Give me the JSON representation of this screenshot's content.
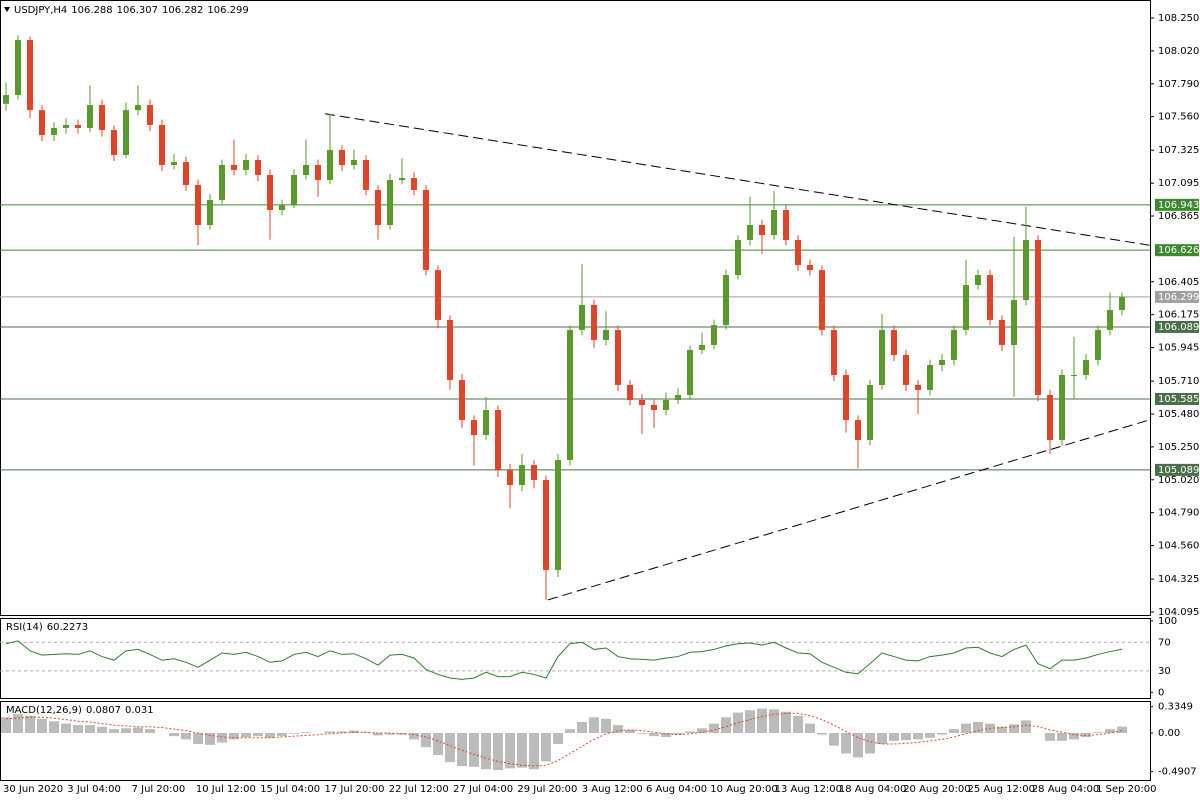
{
  "chart_data": {
    "type": "candlestick",
    "symbol": "USDJPY,H4",
    "ohlc": [
      106.288,
      106.307,
      106.282,
      106.299
    ],
    "up_color": "#5a9a2c",
    "down_color": "#e0452a",
    "ylim": [
      104.074,
      108.376
    ],
    "yticks": [
      {
        "value": 108.25,
        "label": "108.250"
      },
      {
        "value": 108.02,
        "label": "108.020"
      },
      {
        "value": 107.79,
        "label": "107.790"
      },
      {
        "value": 107.56,
        "label": "107.560"
      },
      107.325,
      107.095,
      106.865,
      106.405,
      106.175,
      105.945,
      {
        "value": 105.71,
        "label": "105.710"
      },
      {
        "value": 105.48,
        "label": "105.480"
      },
      {
        "value": 105.25,
        "label": "105.250"
      },
      {
        "value": 105.02,
        "label": "105.020"
      },
      {
        "value": 104.79,
        "label": "104.790"
      },
      {
        "value": 104.56,
        "label": "104.560"
      },
      104.325,
      104.095
    ],
    "xlabels": [
      "30 Jun 2020",
      "3 Jul 04:00",
      "7 Jul 20:00",
      "10 Jul 12:00",
      "15 Jul 04:00",
      "17 Jul 20:00",
      "22 Jul 12:00",
      "27 Jul 04:00",
      "29 Jul 20:00",
      "3 Aug 12:00",
      "6 Aug 04:00",
      "10 Aug 20:00",
      "13 Aug 12:00",
      "18 Aug 04:00",
      "20 Aug 20:00",
      "25 Aug 12:00",
      "28 Aug 04:00",
      "1 Sep 20:00"
    ],
    "levels": [
      {
        "value": 106.943,
        "color": "#3d8a2e"
      },
      {
        "value": 106.626,
        "color": "#3d8a2e"
      },
      {
        "value": 106.299,
        "color": "#a0a0a0"
      },
      {
        "value": 106.089,
        "color": "#4a6f4a"
      },
      {
        "value": 105.585,
        "color": "#4a6f4a"
      },
      {
        "value": 105.089,
        "color": "#4a6f4a"
      }
    ],
    "trendlines": [
      {
        "start": 107.58,
        "end": 106.66
      },
      {
        "start": 104.18,
        "end": 105.44
      }
    ],
    "candles": [
      [
        107.65,
        107.8,
        107.6,
        107.711
      ],
      [
        107.711,
        108.13,
        107.68,
        108.096
      ],
      [
        108.096,
        108.12,
        107.55,
        107.606
      ],
      [
        107.606,
        107.64,
        107.39,
        107.432
      ],
      [
        107.432,
        107.52,
        107.39,
        107.481
      ],
      [
        107.481,
        107.55,
        107.44,
        107.502
      ],
      [
        107.502,
        107.54,
        107.44,
        107.481
      ],
      [
        107.481,
        107.78,
        107.45,
        107.641
      ],
      [
        107.641,
        107.68,
        107.42,
        107.467
      ],
      [
        107.467,
        107.5,
        107.25,
        107.292
      ],
      [
        107.292,
        107.66,
        107.27,
        107.606
      ],
      [
        107.606,
        107.78,
        107.57,
        107.641
      ],
      [
        107.641,
        107.68,
        107.46,
        107.502
      ],
      [
        107.502,
        107.54,
        107.18,
        107.222
      ],
      [
        107.222,
        107.3,
        107.19,
        107.243
      ],
      [
        107.243,
        107.28,
        107.04,
        107.082
      ],
      [
        107.082,
        107.12,
        106.66,
        106.802
      ],
      [
        106.802,
        107.02,
        106.77,
        106.977
      ],
      [
        106.977,
        107.26,
        106.95,
        107.222
      ],
      [
        107.222,
        107.4,
        107.15,
        107.187
      ],
      [
        107.187,
        107.3,
        107.15,
        107.257
      ],
      [
        107.257,
        107.29,
        107.11,
        107.152
      ],
      [
        107.152,
        107.19,
        106.7,
        106.907
      ],
      [
        106.907,
        106.98,
        106.87,
        106.942
      ],
      [
        106.942,
        107.19,
        106.92,
        107.152
      ],
      [
        107.152,
        107.4,
        107.12,
        107.222
      ],
      [
        107.222,
        107.26,
        107.0,
        107.117
      ],
      [
        107.117,
        107.58,
        107.09,
        107.327
      ],
      [
        107.327,
        107.36,
        107.18,
        107.222
      ],
      [
        107.222,
        107.33,
        107.19,
        107.257
      ],
      [
        107.257,
        107.29,
        107.01,
        107.047
      ],
      [
        107.047,
        107.08,
        106.7,
        106.802
      ],
      [
        106.802,
        107.16,
        106.77,
        107.117
      ],
      [
        107.117,
        107.27,
        107.09,
        107.131
      ],
      [
        107.131,
        107.17,
        107.01,
        107.047
      ],
      [
        107.047,
        107.08,
        106.45,
        106.487
      ],
      [
        106.487,
        106.52,
        106.08,
        106.138
      ],
      [
        106.138,
        106.17,
        105.65,
        105.718
      ],
      [
        105.718,
        105.76,
        105.38,
        105.438
      ],
      [
        105.438,
        105.47,
        105.12,
        105.333
      ],
      [
        105.333,
        105.6,
        105.3,
        105.508
      ],
      [
        105.508,
        105.54,
        105.04,
        105.088
      ],
      [
        105.088,
        105.13,
        104.82,
        104.983
      ],
      [
        104.983,
        105.2,
        104.94,
        105.123
      ],
      [
        105.123,
        105.16,
        104.96,
        105.018
      ],
      [
        105.018,
        105.05,
        104.18,
        104.389
      ],
      [
        104.389,
        105.2,
        104.34,
        105.158
      ],
      [
        105.158,
        106.1,
        105.12,
        106.068
      ],
      [
        106.068,
        106.53,
        106.03,
        106.243
      ],
      [
        106.243,
        106.28,
        105.94,
        105.998
      ],
      [
        105.998,
        106.2,
        105.96,
        106.068
      ],
      [
        106.068,
        106.1,
        105.64,
        105.683
      ],
      [
        105.683,
        105.72,
        105.54,
        105.578
      ],
      [
        105.578,
        105.62,
        105.34,
        105.543
      ],
      [
        105.543,
        105.58,
        105.38,
        105.508
      ],
      [
        105.508,
        105.63,
        105.47,
        105.578
      ],
      [
        105.578,
        105.66,
        105.55,
        105.613
      ],
      [
        105.613,
        105.96,
        105.58,
        105.928
      ],
      [
        105.928,
        106.05,
        105.9,
        105.963
      ],
      [
        105.963,
        106.14,
        105.93,
        106.102
      ],
      [
        106.102,
        106.49,
        106.07,
        106.452
      ],
      [
        106.452,
        106.73,
        106.42,
        106.697
      ],
      [
        106.697,
        107.0,
        106.66,
        106.802
      ],
      [
        106.802,
        106.84,
        106.6,
        106.732
      ],
      [
        106.732,
        107.04,
        106.7,
        106.907
      ],
      [
        106.907,
        106.94,
        106.66,
        106.697
      ],
      [
        106.697,
        106.73,
        106.48,
        106.522
      ],
      [
        106.522,
        106.56,
        106.45,
        106.487
      ],
      [
        106.487,
        106.52,
        106.03,
        106.068
      ],
      [
        106.068,
        106.1,
        105.71,
        105.753
      ],
      [
        105.753,
        105.79,
        105.35,
        105.438
      ],
      [
        105.438,
        105.47,
        105.1,
        105.298
      ],
      [
        105.298,
        105.72,
        105.26,
        105.683
      ],
      [
        105.683,
        106.18,
        105.65,
        106.068
      ],
      [
        106.068,
        106.1,
        105.85,
        105.893
      ],
      [
        105.893,
        105.93,
        105.64,
        105.683
      ],
      [
        105.683,
        105.72,
        105.48,
        105.648
      ],
      [
        105.648,
        105.86,
        105.61,
        105.823
      ],
      [
        105.823,
        105.9,
        105.78,
        105.858
      ],
      [
        105.858,
        106.1,
        105.82,
        106.068
      ],
      [
        106.068,
        106.56,
        106.03,
        106.382
      ],
      [
        106.382,
        106.49,
        106.35,
        106.452
      ],
      [
        106.452,
        106.49,
        106.1,
        106.138
      ],
      [
        106.138,
        106.17,
        105.92,
        105.963
      ],
      [
        105.963,
        106.72,
        105.6,
        106.277
      ],
      [
        106.277,
        106.93,
        106.24,
        106.697
      ],
      [
        106.697,
        106.73,
        105.57,
        105.613
      ],
      [
        105.613,
        105.65,
        105.2,
        105.298
      ],
      [
        105.298,
        105.79,
        105.26,
        105.753
      ],
      [
        105.753,
        106.02,
        105.59,
        105.753
      ],
      [
        105.753,
        105.9,
        105.72,
        105.858
      ],
      [
        105.858,
        106.1,
        105.82,
        106.068
      ],
      [
        106.068,
        106.33,
        106.03,
        106.208
      ],
      [
        106.208,
        106.33,
        106.17,
        106.299
      ]
    ],
    "rsi": {
      "name": "RSI(14)",
      "color": "#2f7d2f",
      "ylim": [
        -8,
        104
      ],
      "yticks": [
        0,
        30,
        70,
        100
      ],
      "values": [
        68,
        72,
        58,
        52,
        53,
        54,
        53,
        58,
        50,
        45,
        58,
        60,
        53,
        45,
        47,
        42,
        35,
        45,
        55,
        53,
        56,
        50,
        42,
        44,
        53,
        56,
        50,
        58,
        53,
        54,
        47,
        38,
        52,
        53,
        48,
        32,
        25,
        20,
        18,
        20,
        28,
        22,
        22,
        28,
        25,
        20,
        50,
        68,
        70,
        60,
        62,
        50,
        47,
        46,
        45,
        48,
        50,
        56,
        57,
        60,
        65,
        68,
        69,
        66,
        70,
        62,
        55,
        54,
        42,
        35,
        28,
        26,
        40,
        55,
        50,
        45,
        44,
        50,
        52,
        55,
        62,
        63,
        55,
        50,
        60,
        66,
        40,
        33,
        45,
        45,
        48,
        53,
        57,
        60.2273
      ]
    },
    "macd": {
      "name": "MACD(12,26,9)",
      "color": "#777777",
      "signal_color": "#e0452a",
      "ylim": [
        -0.597,
        0.407
      ],
      "yticks": [
        0.3349,
        {
          "value": 0,
          "label": "0.00"
        },
        -0.4907
      ],
      "values": [
        0.2,
        0.24,
        0.22,
        0.18,
        0.15,
        0.12,
        0.1,
        0.1,
        0.08,
        0.05,
        0.06,
        0.07,
        0.05,
        0.0,
        -0.04,
        -0.08,
        -0.14,
        -0.15,
        -0.12,
        -0.08,
        -0.05,
        -0.04,
        -0.06,
        -0.04,
        -0.01,
        0.01,
        0.0,
        0.02,
        0.02,
        0.03,
        0.01,
        -0.03,
        -0.02,
        -0.02,
        -0.08,
        -0.18,
        -0.28,
        -0.37,
        -0.42,
        -0.43,
        -0.46,
        -0.47,
        -0.45,
        -0.44,
        -0.46,
        -0.36,
        -0.14,
        0.05,
        0.14,
        0.2,
        0.18,
        0.1,
        0.04,
        -0.01,
        -0.04,
        -0.05,
        -0.02,
        0.02,
        0.06,
        0.12,
        0.2,
        0.26,
        0.29,
        0.31,
        0.3,
        0.27,
        0.22,
        0.12,
        -0.02,
        -0.16,
        -0.26,
        -0.31,
        -0.26,
        -0.14,
        -0.1,
        -0.09,
        -0.08,
        -0.06,
        -0.02,
        0.05,
        0.12,
        0.14,
        0.12,
        0.08,
        0.11,
        0.16,
        0.0,
        -0.1,
        -0.1,
        -0.08,
        -0.05,
        0.01,
        0.05,
        0.0807
      ],
      "signal": [
        0.18,
        0.19,
        0.2,
        0.2,
        0.19,
        0.17,
        0.15,
        0.14,
        0.12,
        0.1,
        0.09,
        0.08,
        0.08,
        0.07,
        0.05,
        0.03,
        0.0,
        -0.03,
        -0.05,
        -0.06,
        -0.06,
        -0.06,
        -0.06,
        -0.05,
        -0.04,
        -0.03,
        -0.02,
        -0.01,
        0.0,
        0.01,
        0.01,
        0.0,
        0.0,
        -0.01,
        -0.02,
        -0.05,
        -0.1,
        -0.16,
        -0.22,
        -0.27,
        -0.32,
        -0.36,
        -0.39,
        -0.41,
        -0.42,
        -0.41,
        -0.35,
        -0.26,
        -0.17,
        -0.08,
        -0.01,
        0.03,
        0.04,
        0.03,
        0.01,
        -0.01,
        -0.02,
        -0.01,
        0.01,
        0.04,
        0.08,
        0.13,
        0.17,
        0.21,
        0.24,
        0.25,
        0.25,
        0.22,
        0.17,
        0.1,
        0.02,
        -0.06,
        -0.11,
        -0.14,
        -0.14,
        -0.13,
        -0.12,
        -0.1,
        -0.08,
        -0.05,
        -0.01,
        0.03,
        0.06,
        0.07,
        0.08,
        0.1,
        0.08,
        0.04,
        0.01,
        -0.02,
        -0.03,
        -0.02,
        0.0,
        0.031
      ]
    }
  }
}
